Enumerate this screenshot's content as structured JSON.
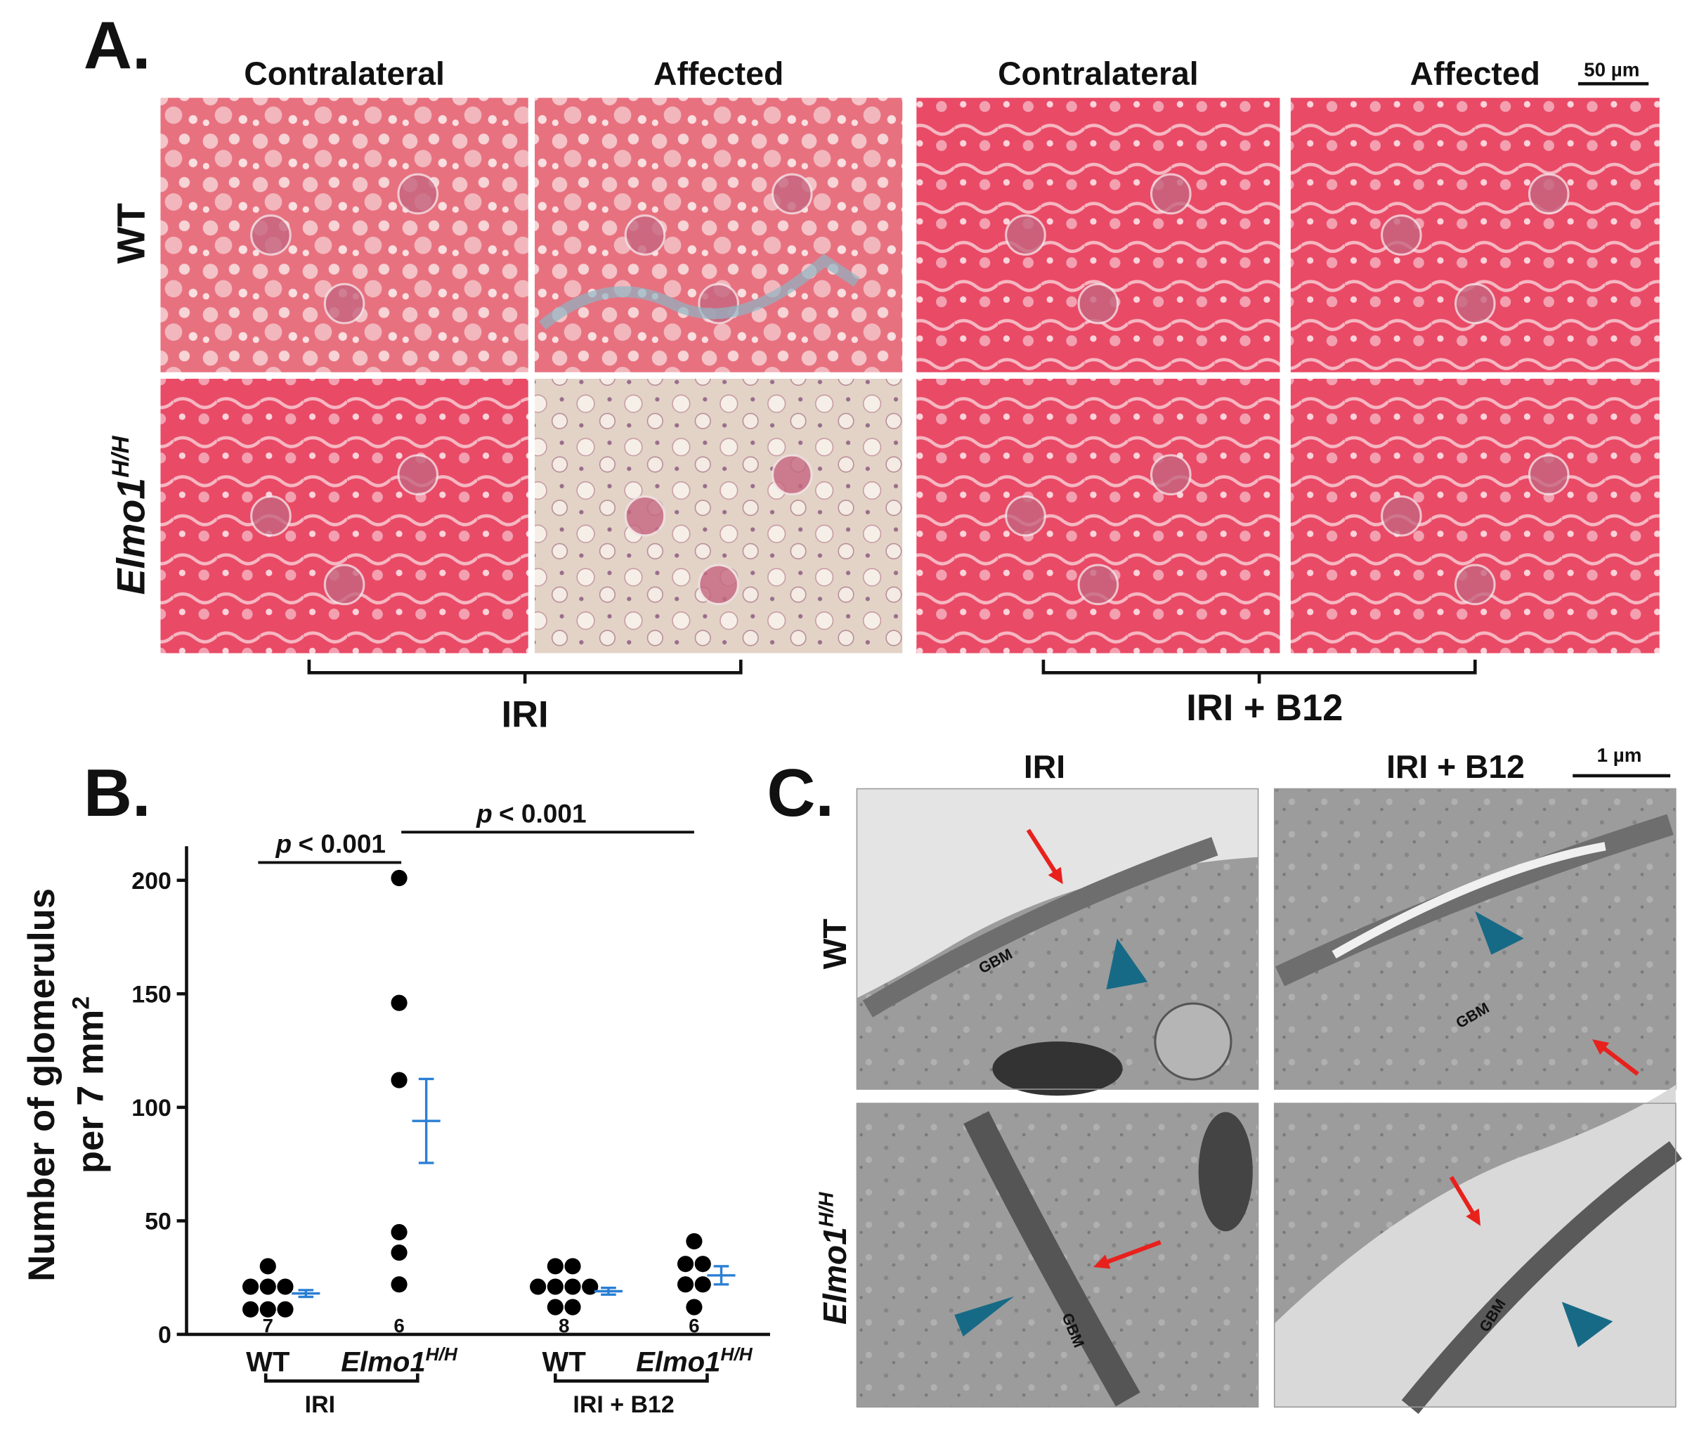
{
  "panel_a": {
    "label": "A.",
    "column_headers": [
      "Contralateral",
      "Affected",
      "Contralateral",
      "Affected"
    ],
    "row_labels": [
      {
        "text": "WT"
      },
      {
        "text": "Elmo1",
        "sup": "H/H"
      }
    ],
    "scale_bar": "50 µm",
    "group_labels": [
      "IRI",
      "IRI + B12"
    ]
  },
  "chart_data": {
    "type": "dot",
    "label": "B.",
    "ylabel": [
      "Number of glomerulus",
      "per 7 mm"
    ],
    "ylabel_sup": "2",
    "ylim": [
      0,
      215
    ],
    "yticks": [
      0,
      50,
      100,
      150,
      200
    ],
    "groups": [
      {
        "label": "WT",
        "n": 7,
        "values": [
          30,
          21,
          21,
          21,
          11,
          11,
          11
        ],
        "mean": 18,
        "sem": 1.5
      },
      {
        "label": "Elmo1",
        "label_sup": "H/H",
        "n": 6,
        "values": [
          201,
          146,
          112,
          45,
          36,
          22
        ],
        "mean": 94,
        "sem": 18.5
      },
      {
        "label": "WT",
        "n": 8,
        "values": [
          30,
          30,
          21,
          21,
          21,
          21,
          12,
          12
        ],
        "mean": 19,
        "sem": 1.5
      },
      {
        "label": "Elmo1",
        "label_sup": "H/H",
        "n": 6,
        "values": [
          41,
          31,
          31,
          22,
          22,
          12
        ],
        "mean": 26,
        "sem": 4
      }
    ],
    "group_brackets": [
      "IRI",
      "IRI + B12"
    ],
    "significance": [
      {
        "symbol": "p",
        "text": "< 0.001"
      },
      {
        "symbol": "p",
        "text": "< 0.001"
      }
    ]
  },
  "panel_c": {
    "label": "C.",
    "column_headers": [
      "IRI",
      "IRI + B12"
    ],
    "row_labels": [
      {
        "text": "WT"
      },
      {
        "text": "Elmo1",
        "sup": "H/H"
      }
    ],
    "scale_bar": "1 µm",
    "annotations": [
      "GBM",
      "GBM",
      "GBM",
      "GBM"
    ]
  }
}
